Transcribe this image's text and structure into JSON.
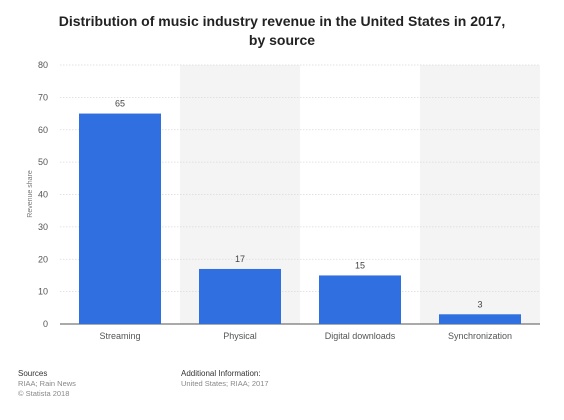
{
  "title_line1": "Distribution of music industry revenue in the United States in 2017,",
  "title_line2": "by source",
  "chart_data": {
    "type": "bar",
    "title": "Distribution of music industry revenue in the United States in 2017, by source",
    "categories": [
      "Streaming",
      "Physical",
      "Digital downloads",
      "Synchronization"
    ],
    "values": [
      65,
      17,
      15,
      3
    ],
    "ylabel": "Revenue share",
    "xlabel": "",
    "ylim": [
      0,
      80
    ],
    "yticks": [
      0,
      10,
      20,
      30,
      40,
      50,
      60,
      70,
      80
    ],
    "data_labels": [
      "65",
      "17",
      "15",
      "3"
    ],
    "bar_color": "#2f6fe0",
    "grid": true
  },
  "footer": {
    "sources_heading": "Sources",
    "sources_line1": "RIAA; Rain News",
    "sources_line2": "© Statista 2018",
    "info_heading": "Additional Information:",
    "info_line1": "United States; RIAA; 2017"
  }
}
